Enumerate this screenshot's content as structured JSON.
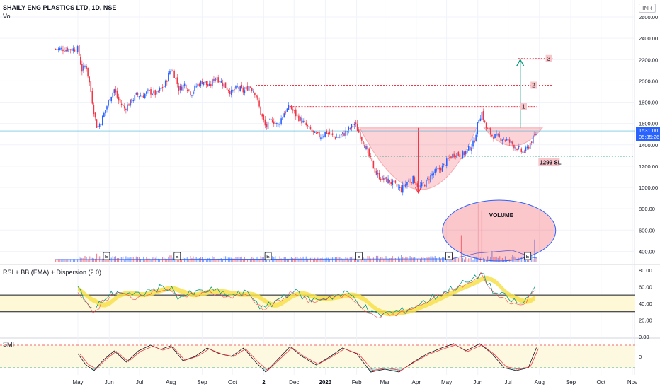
{
  "header": {
    "title": "SHAILY ENG PLASTICS LTD, 1D, NSE",
    "vol_label": "Vol",
    "currency": "INR"
  },
  "chart_data": [
    {
      "type": "candlestick",
      "panel": "price",
      "y_ticks": [
        400,
        600,
        800,
        1000,
        1200,
        1400,
        1600,
        1800,
        2000,
        2200,
        2400,
        2600
      ],
      "y_tick_labels": [
        "400.00",
        "600.00",
        "800.00",
        "1000.00",
        "1200.00",
        "1400.00",
        "1600.00",
        "1800.00",
        "2000.00",
        "2200.00",
        "2400.00",
        "2600.00"
      ],
      "ylim": [
        290,
        2680
      ],
      "x_tick_labels": [
        "May",
        "Jun",
        "Jul",
        "Aug",
        "Sep",
        "Oct",
        "2",
        "Dec",
        "2023",
        "Feb",
        "Mar",
        "Apr",
        "May",
        "Jun",
        "Jul",
        "Aug",
        "Sep",
        "Oct",
        "Nov"
      ],
      "x_tick_days": [
        0,
        31,
        61,
        92,
        123,
        153,
        184,
        214,
        245,
        276,
        304,
        335,
        365,
        396,
        426,
        457,
        488,
        518,
        549
      ],
      "price_label": "1531.00",
      "countdown_label": "05:35:26",
      "current_price": 1531,
      "sl_label": "1293 SL",
      "sl_level": 1293,
      "target_labels": [
        "1",
        "2",
        "3"
      ],
      "target_levels": [
        1760,
        1960,
        2210
      ],
      "volume_note": "VOLUME",
      "earnings_marker": "E",
      "earnings_days": [
        28,
        98,
        188,
        278,
        367,
        445
      ],
      "closes": [
        {
          "d": 0,
          "c": 2300
        },
        {
          "d": 4,
          "c": 2100
        },
        {
          "d": 8,
          "c": 2150
        },
        {
          "d": 12,
          "c": 1950
        },
        {
          "d": 16,
          "c": 1700
        },
        {
          "d": 19,
          "c": 1560
        },
        {
          "d": 23,
          "c": 1620
        },
        {
          "d": 27,
          "c": 1720
        },
        {
          "d": 32,
          "c": 1850
        },
        {
          "d": 36,
          "c": 1920
        },
        {
          "d": 40,
          "c": 1820
        },
        {
          "d": 46,
          "c": 1740
        },
        {
          "d": 52,
          "c": 1800
        },
        {
          "d": 58,
          "c": 1870
        },
        {
          "d": 64,
          "c": 1860
        },
        {
          "d": 70,
          "c": 1900
        },
        {
          "d": 78,
          "c": 1880
        },
        {
          "d": 86,
          "c": 1960
        },
        {
          "d": 92,
          "c": 2120
        },
        {
          "d": 96,
          "c": 2050
        },
        {
          "d": 100,
          "c": 1920
        },
        {
          "d": 106,
          "c": 1970
        },
        {
          "d": 112,
          "c": 1880
        },
        {
          "d": 118,
          "c": 1960
        },
        {
          "d": 124,
          "c": 2000
        },
        {
          "d": 130,
          "c": 1940
        },
        {
          "d": 136,
          "c": 2040
        },
        {
          "d": 142,
          "c": 1990
        },
        {
          "d": 148,
          "c": 1930
        },
        {
          "d": 152,
          "c": 1890
        },
        {
          "d": 158,
          "c": 1940
        },
        {
          "d": 164,
          "c": 1900
        },
        {
          "d": 170,
          "c": 1960
        },
        {
          "d": 176,
          "c": 1880
        },
        {
          "d": 181,
          "c": 1700
        },
        {
          "d": 186,
          "c": 1560
        },
        {
          "d": 192,
          "c": 1640
        },
        {
          "d": 198,
          "c": 1580
        },
        {
          "d": 204,
          "c": 1700
        },
        {
          "d": 210,
          "c": 1760
        },
        {
          "d": 216,
          "c": 1680
        },
        {
          "d": 222,
          "c": 1620
        },
        {
          "d": 228,
          "c": 1560
        },
        {
          "d": 234,
          "c": 1500
        },
        {
          "d": 240,
          "c": 1480
        },
        {
          "d": 246,
          "c": 1520
        },
        {
          "d": 252,
          "c": 1480
        },
        {
          "d": 258,
          "c": 1470
        },
        {
          "d": 264,
          "c": 1510
        },
        {
          "d": 270,
          "c": 1560
        },
        {
          "d": 274,
          "c": 1600
        },
        {
          "d": 279,
          "c": 1500
        },
        {
          "d": 284,
          "c": 1400
        },
        {
          "d": 290,
          "c": 1250
        },
        {
          "d": 296,
          "c": 1120
        },
        {
          "d": 302,
          "c": 1080
        },
        {
          "d": 308,
          "c": 1060
        },
        {
          "d": 314,
          "c": 1020
        },
        {
          "d": 320,
          "c": 980
        },
        {
          "d": 326,
          "c": 1050
        },
        {
          "d": 332,
          "c": 1080
        },
        {
          "d": 338,
          "c": 1000
        },
        {
          "d": 344,
          "c": 1040
        },
        {
          "d": 350,
          "c": 1120
        },
        {
          "d": 356,
          "c": 1160
        },
        {
          "d": 362,
          "c": 1200
        },
        {
          "d": 368,
          "c": 1280
        },
        {
          "d": 374,
          "c": 1320
        },
        {
          "d": 380,
          "c": 1300
        },
        {
          "d": 386,
          "c": 1350
        },
        {
          "d": 392,
          "c": 1420
        },
        {
          "d": 397,
          "c": 1650
        },
        {
          "d": 400,
          "c": 1700
        },
        {
          "d": 404,
          "c": 1560
        },
        {
          "d": 410,
          "c": 1490
        },
        {
          "d": 416,
          "c": 1470
        },
        {
          "d": 422,
          "c": 1460
        },
        {
          "d": 428,
          "c": 1420
        },
        {
          "d": 434,
          "c": 1380
        },
        {
          "d": 440,
          "c": 1330
        },
        {
          "d": 444,
          "c": 1350
        },
        {
          "d": 448,
          "c": 1420
        },
        {
          "d": 452,
          "c": 1480
        },
        {
          "d": 455,
          "c": 1531
        }
      ],
      "volume": [
        {
          "d": 0,
          "v": 30
        },
        {
          "d": 12,
          "v": 60
        },
        {
          "d": 19,
          "v": 90
        },
        {
          "d": 32,
          "v": 40
        },
        {
          "d": 55,
          "v": 55
        },
        {
          "d": 70,
          "v": 35
        },
        {
          "d": 92,
          "v": 70
        },
        {
          "d": 120,
          "v": 40
        },
        {
          "d": 150,
          "v": 45
        },
        {
          "d": 186,
          "v": 80
        },
        {
          "d": 200,
          "v": 60
        },
        {
          "d": 240,
          "v": 40
        },
        {
          "d": 270,
          "v": 55
        },
        {
          "d": 296,
          "v": 65
        },
        {
          "d": 320,
          "v": 75
        },
        {
          "d": 350,
          "v": 60
        },
        {
          "d": 370,
          "v": 95
        },
        {
          "d": 380,
          "v": 300
        },
        {
          "d": 397,
          "v": 650
        },
        {
          "d": 400,
          "v": 580
        },
        {
          "d": 410,
          "v": 120
        },
        {
          "d": 430,
          "v": 80
        },
        {
          "d": 445,
          "v": 70
        },
        {
          "d": 452,
          "v": 250
        }
      ]
    },
    {
      "type": "line",
      "panel": "rsi",
      "title": "RSI + BB (EMA) + Dispersion (2.0)",
      "y_ticks": [
        0,
        20,
        40,
        60,
        80
      ],
      "y_tick_labels": [
        "0.00",
        "20.00",
        "40.00",
        "60.00",
        "80.00"
      ],
      "ylim": [
        0,
        85
      ],
      "upper_band": 50,
      "lower_band": 30,
      "series": [
        {
          "d": 0,
          "v": 58
        },
        {
          "d": 10,
          "v": 38
        },
        {
          "d": 16,
          "v": 30
        },
        {
          "d": 25,
          "v": 45
        },
        {
          "d": 40,
          "v": 55
        },
        {
          "d": 55,
          "v": 48
        },
        {
          "d": 70,
          "v": 55
        },
        {
          "d": 90,
          "v": 60
        },
        {
          "d": 100,
          "v": 48
        },
        {
          "d": 115,
          "v": 52
        },
        {
          "d": 130,
          "v": 56
        },
        {
          "d": 150,
          "v": 50
        },
        {
          "d": 170,
          "v": 52
        },
        {
          "d": 184,
          "v": 32
        },
        {
          "d": 198,
          "v": 45
        },
        {
          "d": 212,
          "v": 55
        },
        {
          "d": 230,
          "v": 44
        },
        {
          "d": 250,
          "v": 48
        },
        {
          "d": 268,
          "v": 52
        },
        {
          "d": 280,
          "v": 40
        },
        {
          "d": 292,
          "v": 26
        },
        {
          "d": 305,
          "v": 28
        },
        {
          "d": 320,
          "v": 30
        },
        {
          "d": 340,
          "v": 40
        },
        {
          "d": 360,
          "v": 52
        },
        {
          "d": 378,
          "v": 62
        },
        {
          "d": 392,
          "v": 68
        },
        {
          "d": 400,
          "v": 78
        },
        {
          "d": 410,
          "v": 55
        },
        {
          "d": 425,
          "v": 46
        },
        {
          "d": 440,
          "v": 38
        },
        {
          "d": 450,
          "v": 55
        },
        {
          "d": 455,
          "v": 63
        }
      ]
    },
    {
      "type": "line",
      "panel": "smi",
      "title": "SMI",
      "y_ticks": [
        0
      ],
      "y_tick_labels": [
        "0"
      ],
      "ylim": [
        -60,
        60
      ],
      "upper_line": 40,
      "lower_line": -40,
      "series": [
        {
          "d": 0,
          "v": 10
        },
        {
          "d": 8,
          "v": -30
        },
        {
          "d": 16,
          "v": -50
        },
        {
          "d": 26,
          "v": -10
        },
        {
          "d": 36,
          "v": 20
        },
        {
          "d": 48,
          "v": -20
        },
        {
          "d": 60,
          "v": 20
        },
        {
          "d": 72,
          "v": 40
        },
        {
          "d": 82,
          "v": 25
        },
        {
          "d": 92,
          "v": 38
        },
        {
          "d": 104,
          "v": -15
        },
        {
          "d": 116,
          "v": 0
        },
        {
          "d": 128,
          "v": 30
        },
        {
          "d": 140,
          "v": 10
        },
        {
          "d": 152,
          "v": 0
        },
        {
          "d": 164,
          "v": 30
        },
        {
          "d": 176,
          "v": -20
        },
        {
          "d": 186,
          "v": -55
        },
        {
          "d": 198,
          "v": -10
        },
        {
          "d": 210,
          "v": 35
        },
        {
          "d": 222,
          "v": 0
        },
        {
          "d": 236,
          "v": -30
        },
        {
          "d": 250,
          "v": 0
        },
        {
          "d": 262,
          "v": 30
        },
        {
          "d": 276,
          "v": 10
        },
        {
          "d": 290,
          "v": -55
        },
        {
          "d": 304,
          "v": -45
        },
        {
          "d": 318,
          "v": -55
        },
        {
          "d": 332,
          "v": -20
        },
        {
          "d": 346,
          "v": 10
        },
        {
          "d": 360,
          "v": 30
        },
        {
          "d": 372,
          "v": 45
        },
        {
          "d": 384,
          "v": 20
        },
        {
          "d": 398,
          "v": 45
        },
        {
          "d": 410,
          "v": 10
        },
        {
          "d": 422,
          "v": -40
        },
        {
          "d": 434,
          "v": -50
        },
        {
          "d": 446,
          "v": -40
        },
        {
          "d": 455,
          "v": 40
        }
      ]
    }
  ]
}
